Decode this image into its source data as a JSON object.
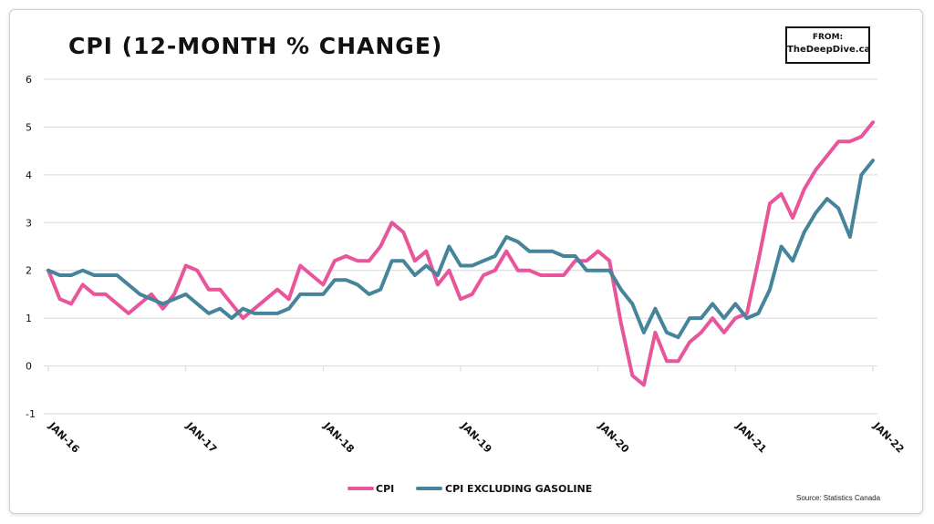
{
  "colors": {
    "cpi": "#e8559a",
    "cpi_ex_gas": "#45849a",
    "grid": "#d9d9d9"
  },
  "header": {
    "title": "CPI (12-MONTH % CHANGE)"
  },
  "source_box": {
    "line1": "FROM:",
    "line2": "TheDeepDive.ca"
  },
  "footer": {
    "source": "Source: Statistics Canada"
  },
  "chart_data": {
    "type": "line",
    "title": "CPI (12-MONTH % CHANGE)",
    "ylim": [
      -1,
      6
    ],
    "yticks": [
      6,
      5,
      4,
      3,
      2,
      1,
      0,
      -1
    ],
    "x_tick_labels": [
      "JAN-16",
      "JAN-17",
      "JAN-18",
      "JAN-19",
      "JAN-20",
      "JAN-21",
      "JAN-22"
    ],
    "x_start": "2016-01",
    "x_end": "2022-01",
    "grid": "horizontal",
    "legend_position": "bottom-center",
    "series": [
      {
        "name": "CPI",
        "values": [
          2.0,
          1.4,
          1.3,
          1.7,
          1.5,
          1.5,
          1.3,
          1.1,
          1.3,
          1.5,
          1.2,
          1.5,
          2.1,
          2.0,
          1.6,
          1.6,
          1.3,
          1.0,
          1.2,
          1.4,
          1.6,
          1.4,
          2.1,
          1.9,
          1.7,
          2.2,
          2.3,
          2.2,
          2.2,
          2.5,
          3.0,
          2.8,
          2.2,
          2.4,
          1.7,
          2.0,
          1.4,
          1.5,
          1.9,
          2.0,
          2.4,
          2.0,
          2.0,
          1.9,
          1.9,
          1.9,
          2.2,
          2.2,
          2.4,
          2.2,
          0.9,
          -0.2,
          -0.4,
          0.7,
          0.1,
          0.1,
          0.5,
          0.7,
          1.0,
          0.7,
          1.0,
          1.1,
          2.2,
          3.4,
          3.6,
          3.1,
          3.7,
          4.1,
          4.4,
          4.7,
          4.7,
          4.8,
          5.1
        ]
      },
      {
        "name": "CPI excluding gasoline",
        "values": [
          2.0,
          1.9,
          1.9,
          2.0,
          1.9,
          1.9,
          1.9,
          1.7,
          1.5,
          1.4,
          1.3,
          1.4,
          1.5,
          1.3,
          1.1,
          1.2,
          1.0,
          1.2,
          1.1,
          1.1,
          1.1,
          1.2,
          1.5,
          1.5,
          1.5,
          1.8,
          1.8,
          1.7,
          1.5,
          1.6,
          2.2,
          2.2,
          1.9,
          2.1,
          1.9,
          2.5,
          2.1,
          2.1,
          2.2,
          2.3,
          2.7,
          2.6,
          2.4,
          2.4,
          2.4,
          2.3,
          2.3,
          2.0,
          2.0,
          2.0,
          1.6,
          1.3,
          0.7,
          1.2,
          0.7,
          0.6,
          1.0,
          1.0,
          1.3,
          1.0,
          1.3,
          1.0,
          1.1,
          1.6,
          2.5,
          2.2,
          2.8,
          3.2,
          3.5,
          3.3,
          2.7,
          4.0,
          4.3
        ]
      }
    ]
  }
}
